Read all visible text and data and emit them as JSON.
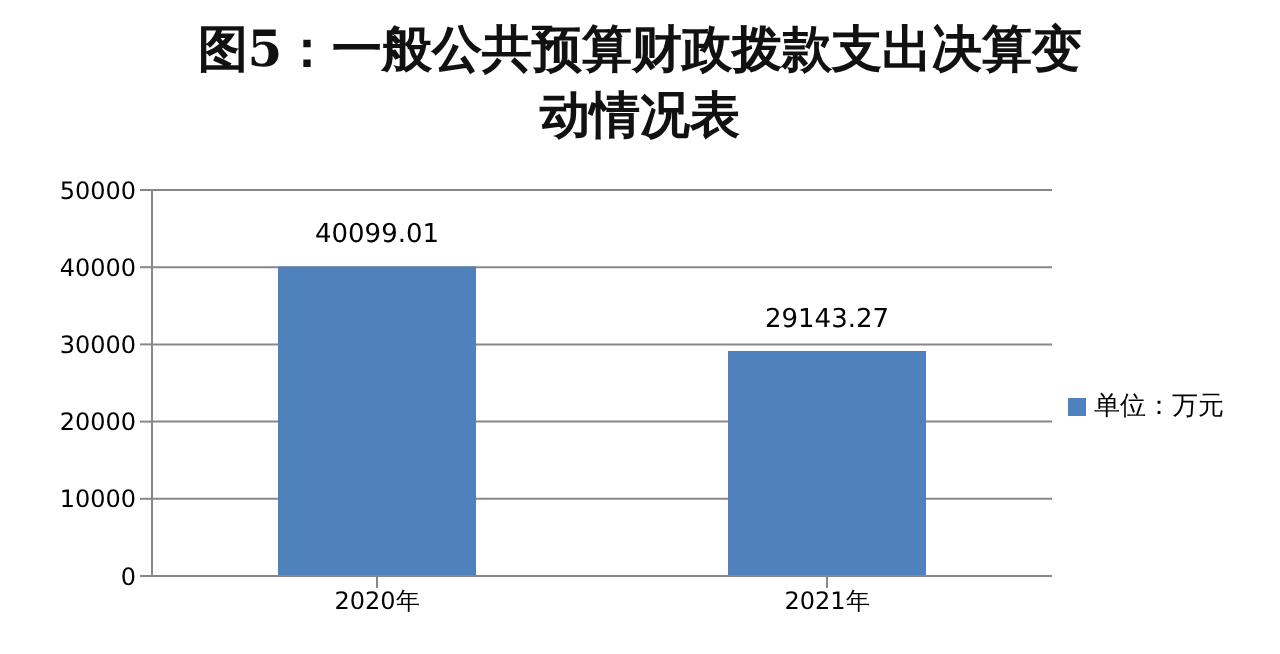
{
  "chart_data": {
    "type": "bar",
    "title": "图5：一般公共预算财政拨款支出决算变动情况表",
    "categories": [
      "2020年",
      "2021年"
    ],
    "series": [
      {
        "name": "单位：万元",
        "color": "#4f81bd",
        "values": [
          40099.01,
          29143.27
        ]
      }
    ],
    "ylim": [
      0,
      50000
    ],
    "yticks": [
      0,
      10000,
      20000,
      30000,
      40000,
      50000
    ],
    "grid": "y",
    "legend": "right",
    "data_labels": true
  }
}
